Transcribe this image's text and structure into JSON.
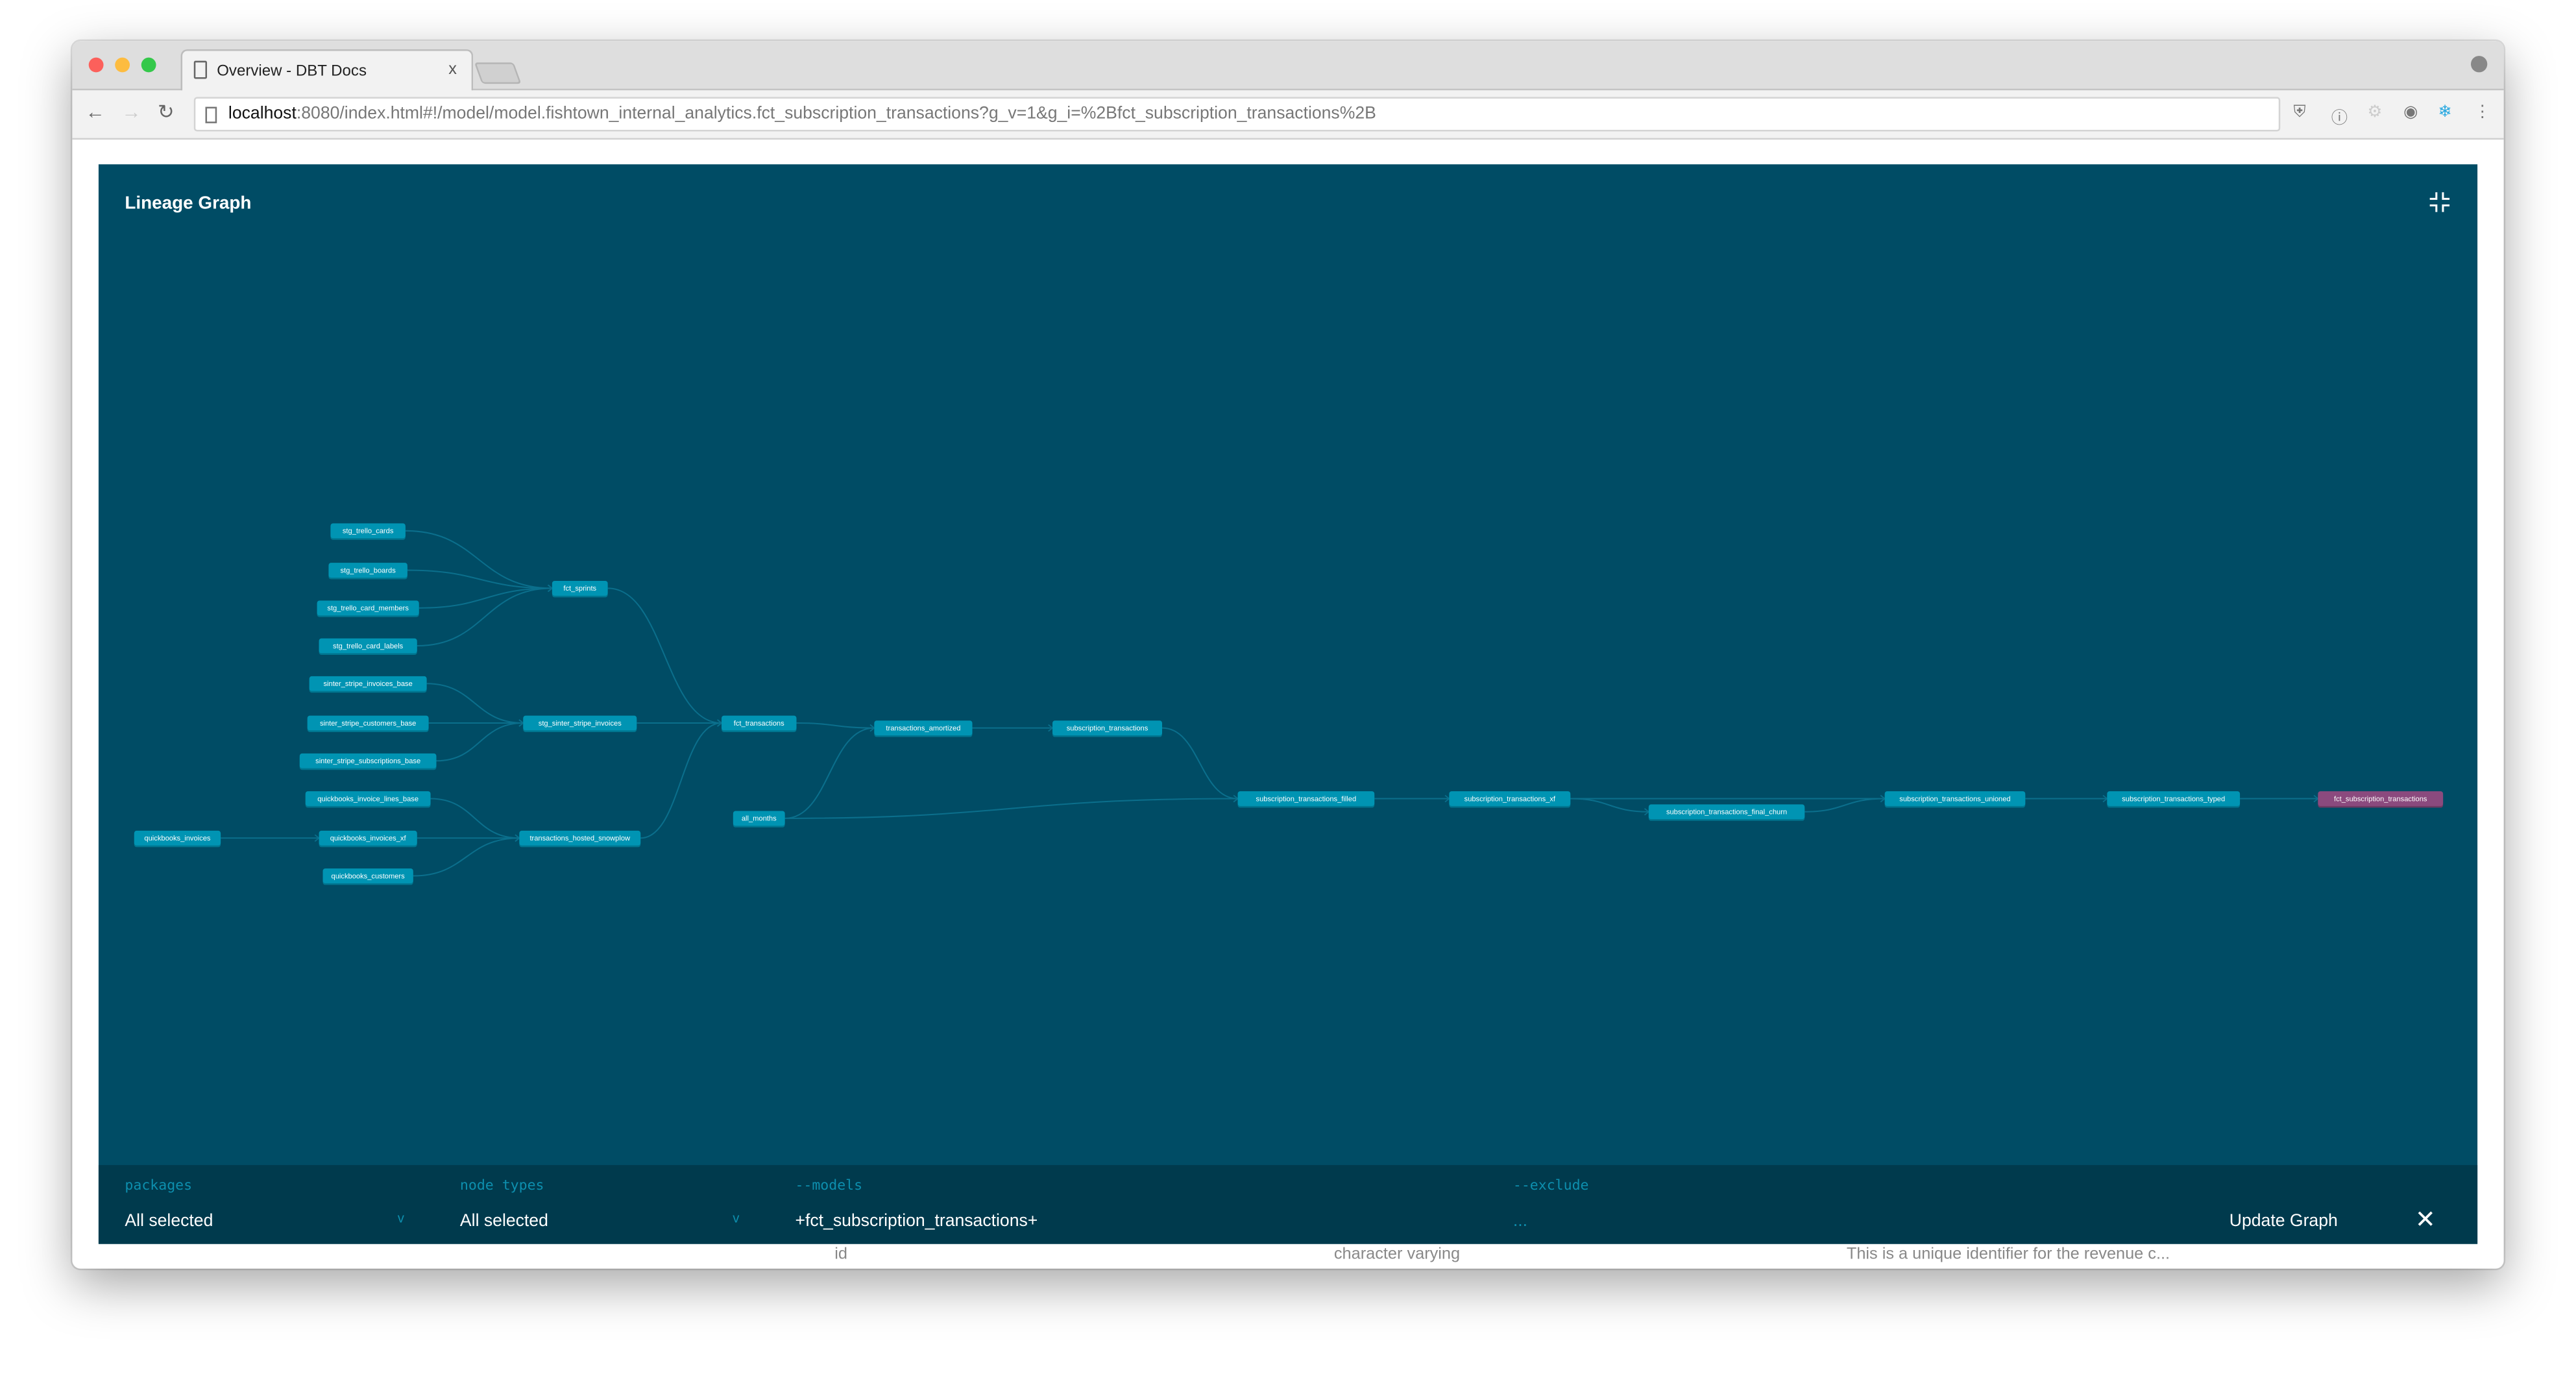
{
  "browser": {
    "tab_title": "Overview - DBT Docs",
    "tab_close": "x",
    "url_host": "localhost",
    "url_rest": ":8080/index.html#!/model/model.fishtown_internal_analytics.fct_subscription_transactions?g_v=1&g_i=%2Bfct_subscription_transactions%2B"
  },
  "behind": {
    "row": {
      "name": "id",
      "type": "character varying",
      "description": "This is a unique identifier for the revenue c..."
    }
  },
  "modal": {
    "title": "Lineage Graph"
  },
  "graph": {
    "selected": "fct_subscription_transactions",
    "colors": {
      "node": "#0094b3",
      "selected": "#8b4a7e",
      "edge": "#0b6f8c",
      "background": "#004c65"
    },
    "nodes": [
      "stg_trello_cards",
      "stg_trello_boards",
      "stg_trello_card_members",
      "stg_trello_card_labels",
      "sinter_stripe_invoices_base",
      "sinter_stripe_customers_base",
      "sinter_stripe_subscriptions_base",
      "quickbooks_invoice_lines_base",
      "quickbooks_invoices_xf",
      "quickbooks_customers",
      "quickbooks_invoices",
      "fct_sprints",
      "stg_sinter_stripe_invoices",
      "transactions_hosted_snowplow",
      "fct_transactions",
      "all_months",
      "transactions_amortized",
      "subscription_transactions",
      "subscription_transactions_filled",
      "subscription_transactions_xf",
      "subscription_transactions_final_churn",
      "subscription_transactions_unioned",
      "subscription_transactions_typed",
      "fct_subscription_transactions"
    ],
    "edges": [
      [
        "stg_trello_cards",
        "fct_sprints"
      ],
      [
        "stg_trello_boards",
        "fct_sprints"
      ],
      [
        "stg_trello_card_members",
        "fct_sprints"
      ],
      [
        "stg_trello_card_labels",
        "fct_sprints"
      ],
      [
        "sinter_stripe_invoices_base",
        "stg_sinter_stripe_invoices"
      ],
      [
        "sinter_stripe_customers_base",
        "stg_sinter_stripe_invoices"
      ],
      [
        "sinter_stripe_subscriptions_base",
        "stg_sinter_stripe_invoices"
      ],
      [
        "quickbooks_invoice_lines_base",
        "transactions_hosted_snowplow"
      ],
      [
        "quickbooks_invoices_xf",
        "transactions_hosted_snowplow"
      ],
      [
        "quickbooks_customers",
        "transactions_hosted_snowplow"
      ],
      [
        "quickbooks_invoices",
        "quickbooks_invoices_xf"
      ],
      [
        "fct_sprints",
        "fct_transactions"
      ],
      [
        "stg_sinter_stripe_invoices",
        "fct_transactions"
      ],
      [
        "transactions_hosted_snowplow",
        "fct_transactions"
      ],
      [
        "fct_transactions",
        "transactions_amortized"
      ],
      [
        "all_months",
        "transactions_amortized"
      ],
      [
        "transactions_amortized",
        "subscription_transactions"
      ],
      [
        "subscription_transactions",
        "subscription_transactions_filled"
      ],
      [
        "all_months",
        "subscription_transactions_filled"
      ],
      [
        "subscription_transactions_filled",
        "subscription_transactions_xf"
      ],
      [
        "subscription_transactions_xf",
        "subscription_transactions_final_churn"
      ],
      [
        "subscription_transactions_xf",
        "subscription_transactions_unioned"
      ],
      [
        "subscription_transactions_final_churn",
        "subscription_transactions_unioned"
      ],
      [
        "subscription_transactions_unioned",
        "subscription_transactions_typed"
      ],
      [
        "subscription_transactions_typed",
        "fct_subscription_transactions"
      ]
    ]
  },
  "filters": {
    "packages": {
      "label": "packages",
      "value": "All selected"
    },
    "node_types": {
      "label": "node types",
      "value": "All selected"
    },
    "models": {
      "label": "--models",
      "value": "+fct_subscription_transactions+"
    },
    "exclude": {
      "label": "--exclude",
      "placeholder": "..."
    },
    "chevron": "v",
    "update_label": "Update Graph",
    "close": "✕"
  }
}
